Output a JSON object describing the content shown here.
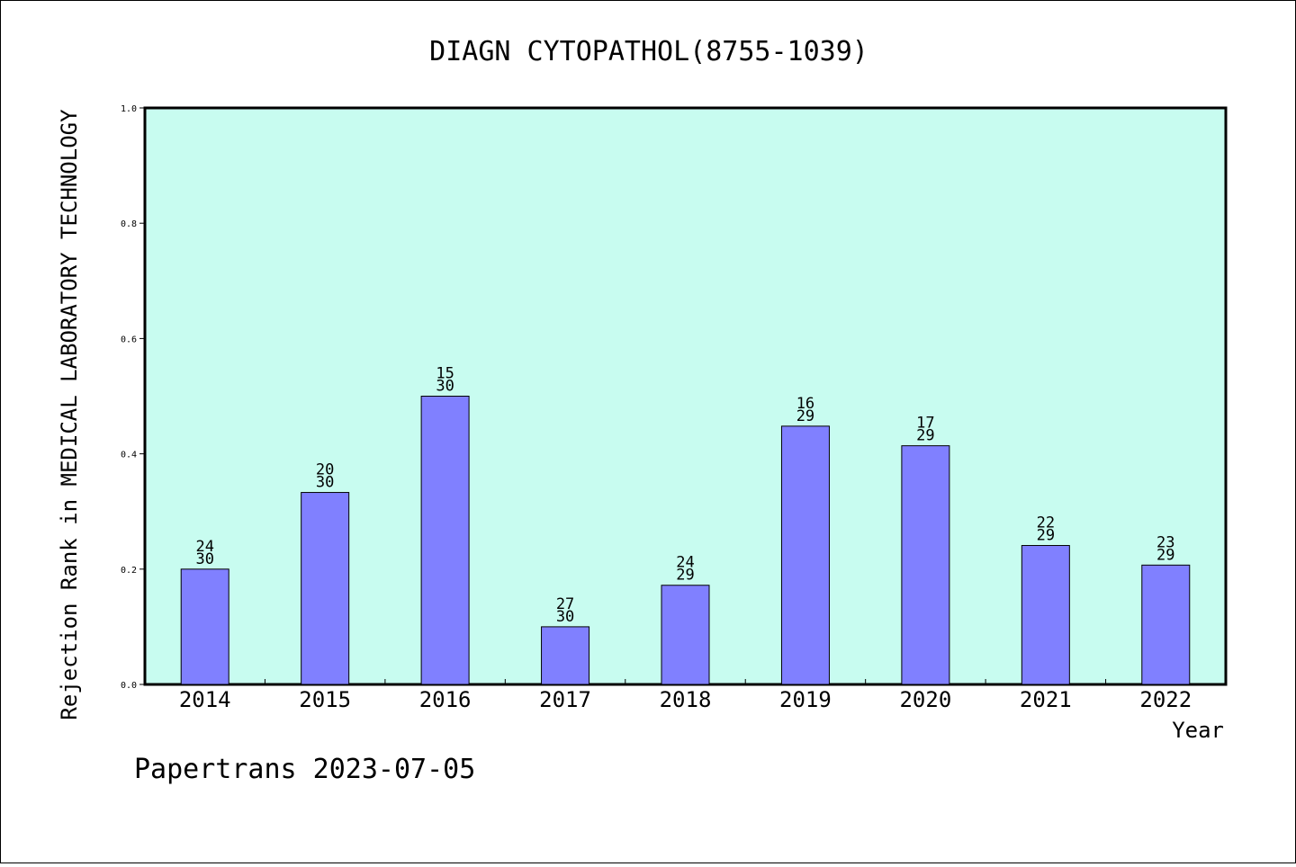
{
  "chart_data": {
    "type": "bar",
    "title": "DIAGN CYTOPATHOL(8755-1039)",
    "xlabel": "Year",
    "ylabel": "Rejection Rank in MEDICAL LABORATORY TECHNOLOGY",
    "ylim": [
      0,
      1.0
    ],
    "yticks": [
      "0.0",
      "0.2",
      "0.4",
      "0.6",
      "0.8",
      "1.0"
    ],
    "grid": false,
    "categories": [
      "2014",
      "2015",
      "2016",
      "2017",
      "2018",
      "2019",
      "2020",
      "2021",
      "2022"
    ],
    "values": [
      0.2,
      0.333,
      0.5,
      0.1,
      0.172,
      0.448,
      0.414,
      0.241,
      0.207
    ],
    "labels": [
      {
        "rank": "24",
        "total": "30"
      },
      {
        "rank": "20",
        "total": "30"
      },
      {
        "rank": "15",
        "total": "30"
      },
      {
        "rank": "27",
        "total": "30"
      },
      {
        "rank": "24",
        "total": "29"
      },
      {
        "rank": "16",
        "total": "29"
      },
      {
        "rank": "17",
        "total": "29"
      },
      {
        "rank": "22",
        "total": "29"
      },
      {
        "rank": "23",
        "total": "29"
      }
    ],
    "colors": {
      "plot_background": "#c8fcf0",
      "bar_fill": "#8080ff",
      "bar_stroke": "#000000"
    }
  },
  "footer": {
    "text": "Papertrans 2023-07-05"
  }
}
